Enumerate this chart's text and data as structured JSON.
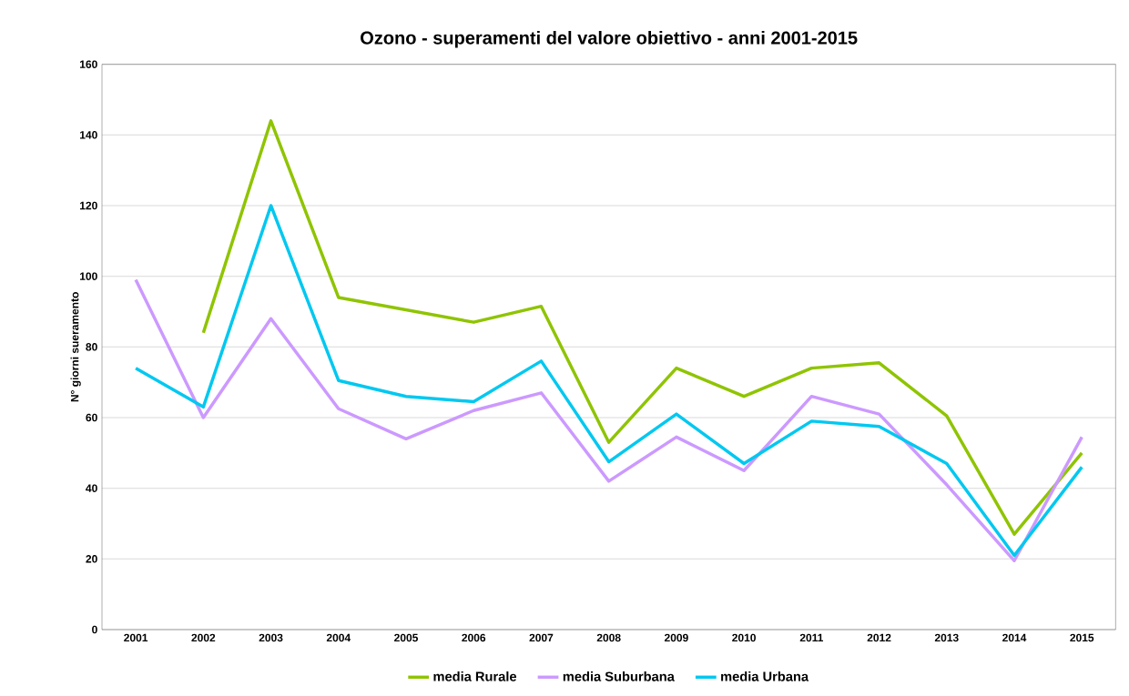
{
  "chart_data": {
    "type": "line",
    "title": "Ozono - superamenti del valore obiettivo - anni 2001-2015",
    "ylabel": "N° giorni sueramento",
    "categories": [
      "2001",
      "2002",
      "2003",
      "2004",
      "2005",
      "2006",
      "2007",
      "2008",
      "2009",
      "2010",
      "2011",
      "2012",
      "2013",
      "2014",
      "2015"
    ],
    "series": [
      {
        "name": "media Rurale",
        "color": "#8fc400",
        "values": [
          null,
          84,
          144,
          94,
          90.5,
          87,
          91.5,
          53,
          74,
          66,
          74,
          75.5,
          60.5,
          27,
          50
        ]
      },
      {
        "name": "media Suburbana",
        "color": "#cc99ff",
        "values": [
          99,
          60,
          88,
          62.5,
          54,
          62,
          67,
          42,
          54.5,
          45,
          66,
          61,
          41,
          19.5,
          54.5
        ]
      },
      {
        "name": "media Urbana",
        "color": "#00c8f0",
        "values": [
          74,
          63,
          120,
          70.5,
          66,
          64.5,
          76,
          47.5,
          61,
          47,
          59,
          57.5,
          47,
          21,
          46
        ]
      }
    ],
    "ylim": [
      0,
      160
    ],
    "yticks": [
      0,
      20,
      40,
      60,
      80,
      100,
      120,
      140,
      160
    ],
    "grid": "y",
    "legend": "bottom",
    "marker": "none",
    "line_style": "solid"
  }
}
